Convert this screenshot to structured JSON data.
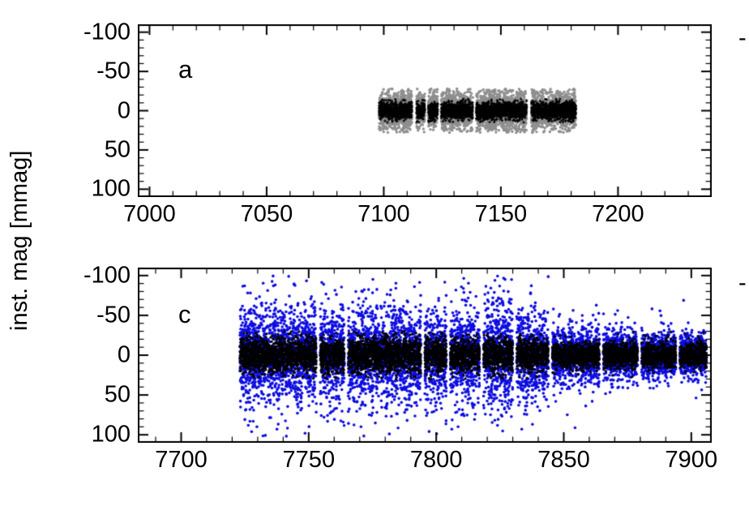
{
  "figure": {
    "ylabel": "inst. mag [mmag]",
    "background": "#ffffff",
    "cropped_right_labels": [
      "-",
      "-"
    ]
  },
  "chart_data": [
    {
      "type": "scatter",
      "panel_label": "a",
      "title": "",
      "xlabel": "",
      "ylabel": "inst. mag [mmag]",
      "xlim": [
        6995,
        7240
      ],
      "ylim": [
        -110,
        110
      ],
      "y_inverted": true,
      "grid": false,
      "legend": "none",
      "xticks": [
        7000,
        7050,
        7100,
        7150,
        7200
      ],
      "yticks": [
        -100,
        -50,
        0,
        50,
        100
      ],
      "x_minor": 10,
      "y_minor": 10,
      "seed": 12345,
      "series": [
        {
          "name": "wide-scatter-gray",
          "color": "#8e8e8e",
          "size": 1.7,
          "marker": "dot",
          "sigma": 12,
          "clip": 28,
          "outlier_frac": 0.02,
          "outlier_mult": 1.5,
          "points_per_day": 60,
          "segments": [
            [
              7098,
              7112
            ],
            [
              7114,
              7117.5
            ],
            [
              7119,
              7123
            ],
            [
              7124.5,
              7138
            ],
            [
              7139.5,
              7161
            ],
            [
              7163,
              7182
            ]
          ]
        },
        {
          "name": "core-scatter-black",
          "color": "#000000",
          "size": 1.4,
          "marker": "plus",
          "sigma": 5.5,
          "clip": 15,
          "outlier_frac": 0.02,
          "outlier_mult": 1.8,
          "points_per_day": 50,
          "segments": [
            [
              7098,
              7112
            ],
            [
              7114,
              7117.5
            ],
            [
              7119,
              7123
            ],
            [
              7124.5,
              7138
            ],
            [
              7139.5,
              7161
            ],
            [
              7163,
              7182
            ]
          ]
        }
      ]
    },
    {
      "type": "scatter",
      "panel_label": "c",
      "title": "",
      "xlabel": "",
      "ylabel": "inst. mag [mmag]",
      "xlim": [
        7683,
        7908
      ],
      "ylim": [
        -110,
        110
      ],
      "y_inverted": true,
      "grid": false,
      "legend": "none",
      "xticks": [
        7700,
        7750,
        7800,
        7850,
        7900
      ],
      "yticks": [
        -100,
        -50,
        0,
        50,
        100
      ],
      "x_minor": 10,
      "y_minor": 10,
      "seed": 98765,
      "series": [
        {
          "name": "wide-scatter-blue",
          "color": "#0d0de0",
          "size": 1.8,
          "marker": "dot",
          "sigma": 28,
          "clip": 102,
          "outlier_frac": 0.05,
          "outlier_mult": 2.1,
          "points_per_day": 48,
          "segments": [
            [
              7723,
              7753,
              30
            ],
            [
              7754.5,
              7764,
              30
            ],
            [
              7765.5,
              7794,
              29
            ],
            [
              7795.5,
              7804,
              29
            ],
            [
              7805.5,
              7817,
              28
            ],
            [
              7818.5,
              7830,
              34
            ],
            [
              7831.5,
              7844,
              27
            ],
            [
              7845.5,
              7864,
              17
            ],
            [
              7865.5,
              7879,
              15
            ],
            [
              7880.5,
              7894,
              14
            ],
            [
              7895.5,
              7906,
              14
            ]
          ]
        },
        {
          "name": "core-scatter-black",
          "color": "#000000",
          "size": 1.6,
          "marker": "dot",
          "sigma": 10,
          "clip": 30,
          "outlier_frac": 0.02,
          "outlier_mult": 1.6,
          "points_per_day": 42,
          "segments": [
            [
              7723,
              7753,
              11
            ],
            [
              7754.5,
              7764,
              11
            ],
            [
              7765.5,
              7794,
              11
            ],
            [
              7795.5,
              7804,
              11
            ],
            [
              7805.5,
              7817,
              10
            ],
            [
              7818.5,
              7830,
              11
            ],
            [
              7831.5,
              7844,
              10
            ],
            [
              7845.5,
              7864,
              8
            ],
            [
              7865.5,
              7879,
              8
            ],
            [
              7880.5,
              7894,
              8
            ],
            [
              7895.5,
              7906,
              8
            ]
          ]
        }
      ]
    }
  ]
}
